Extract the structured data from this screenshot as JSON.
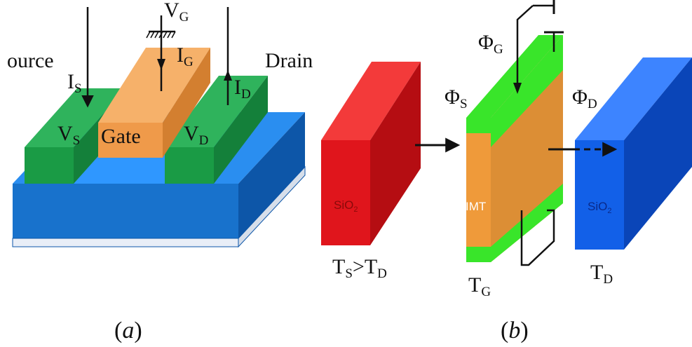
{
  "colors": {
    "substrate_front": "#1872cc",
    "substrate_top": "#2a8ef0",
    "substrate_side": "#0d56a8",
    "green_front": "#1a9b45",
    "green_top": "#2fb35c",
    "green_side": "#14803a",
    "gate_front": "#ef9a4a",
    "gate_top": "#f6b16a",
    "gate_side": "#d37f30",
    "red_front": "#e0151c",
    "red_side": "#b50d12",
    "red_top": "#f33a3a",
    "blue_front": "#1260e8",
    "blue_side": "#0a45b8",
    "blue_top": "#3d84ff",
    "imt_orange": "#ef9a3a",
    "imt_green": "#39e52a"
  },
  "panel_a": {
    "source_label": "ource",
    "drain_label": "Drain",
    "is_label": {
      "main": "I",
      "sub": "S"
    },
    "ig_label": {
      "main": "I",
      "sub": "G"
    },
    "id_label": {
      "main": "I",
      "sub": "D"
    },
    "vg_label": {
      "main": "V",
      "sub": "G"
    },
    "vs_label": {
      "main": "V",
      "sub": "S"
    },
    "vd_label": {
      "main": "V",
      "sub": "D"
    },
    "gate_label": "Gate",
    "caption": {
      "open": "(",
      "letter": "a",
      "close": ")"
    }
  },
  "panel_b": {
    "phi_g": {
      "main": "Φ",
      "sub": "G"
    },
    "phi_s": {
      "main": "Φ",
      "sub": "S"
    },
    "phi_d": {
      "main": "Φ",
      "sub": "D"
    },
    "sio2_left": {
      "main": "SiO",
      "sub": "2"
    },
    "sio2_right": {
      "main": "SiO",
      "sub": "2"
    },
    "imt_label": "IMT",
    "ts_td": {
      "t1": "T",
      "s1": "S",
      "gt": ">T",
      "s2": "D"
    },
    "tg": {
      "main": "T",
      "sub": "G"
    },
    "td": {
      "main": "T",
      "sub": "D"
    },
    "caption": {
      "open": "(",
      "letter": "b",
      "close": ")"
    }
  }
}
